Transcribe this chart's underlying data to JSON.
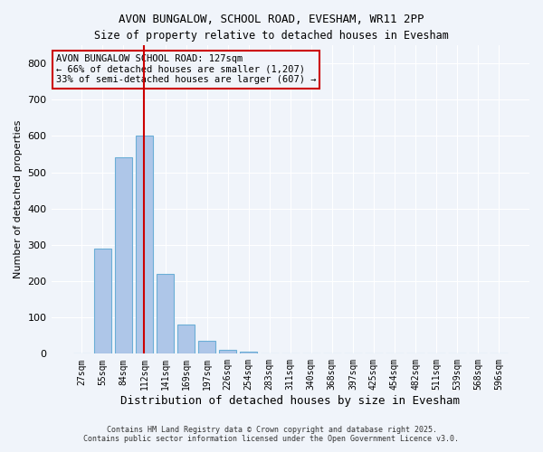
{
  "title_line1": "AVON BUNGALOW, SCHOOL ROAD, EVESHAM, WR11 2PP",
  "title_line2": "Size of property relative to detached houses in Evesham",
  "xlabel": "Distribution of detached houses by size in Evesham",
  "ylabel": "Number of detached properties",
  "bar_labels": [
    "27sqm",
    "55sqm",
    "84sqm",
    "112sqm",
    "141sqm",
    "169sqm",
    "197sqm",
    "226sqm",
    "254sqm",
    "283sqm",
    "311sqm",
    "340sqm",
    "368sqm",
    "397sqm",
    "425sqm",
    "454sqm",
    "482sqm",
    "511sqm",
    "539sqm",
    "568sqm",
    "596sqm"
  ],
  "bar_values": [
    0,
    290,
    540,
    600,
    220,
    80,
    35,
    12,
    5,
    2,
    1,
    1,
    0,
    0,
    0,
    0,
    0,
    0,
    0,
    0,
    0
  ],
  "bar_color": "#aec6e8",
  "bar_edge_color": "#6baed6",
  "property_size_index": 3,
  "property_size_label": "127sqm",
  "vline_color": "#cc0000",
  "annotation_title": "AVON BUNGALOW SCHOOL ROAD: 127sqm",
  "annotation_line2": "← 66% of detached houses are smaller (1,207)",
  "annotation_line3": "33% of semi-detached houses are larger (607) →",
  "annotation_box_color": "#cc0000",
  "ylim": [
    0,
    850
  ],
  "yticks": [
    0,
    100,
    200,
    300,
    400,
    500,
    600,
    700,
    800
  ],
  "footer_line1": "Contains HM Land Registry data © Crown copyright and database right 2025.",
  "footer_line2": "Contains public sector information licensed under the Open Government Licence v3.0.",
  "background_color": "#f0f4fa",
  "grid_color": "#ffffff"
}
